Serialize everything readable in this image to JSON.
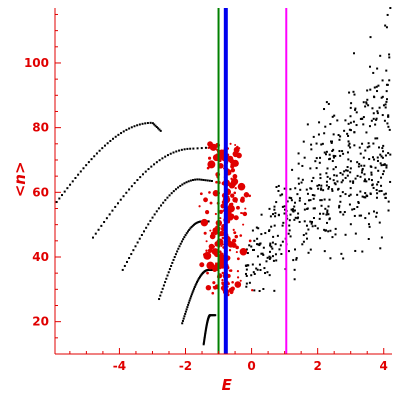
{
  "chart_data": {
    "type": "scatter",
    "title": "",
    "xlabel": "E",
    "ylabel": "<n>",
    "xlim": [
      -5.95,
      4.25
    ],
    "ylim": [
      10,
      117
    ],
    "xticks": [
      -4,
      -2,
      0,
      2,
      4
    ],
    "yticks": [
      20,
      40,
      60,
      80,
      100
    ],
    "grid": false,
    "colors": {
      "axis": "#e00000",
      "black_points": "#000000",
      "red_points": "#e00000",
      "green_line": "#008000",
      "blue_line": "#0000ee",
      "magenta_line": "#ff00ff"
    },
    "vertical_lines": [
      {
        "x": -1.0,
        "color": "#008000",
        "width": "thin"
      },
      {
        "x": -0.78,
        "color": "#0000ee",
        "width": "thick"
      },
      {
        "x": 1.05,
        "color": "#ff00ff",
        "width": "thin"
      }
    ],
    "curves": [
      {
        "x_start": -5.9,
        "y_start": 57,
        "x_peak": -3.0,
        "y_peak": 81.5,
        "x_end": -2.75,
        "y_end": 79
      },
      {
        "x_start": -4.8,
        "y_start": 46,
        "x_peak": -1.8,
        "y_peak": 73.5,
        "x_end": -1.0,
        "y_end": 74
      },
      {
        "x_start": -3.9,
        "y_start": 36,
        "x_peak": -1.6,
        "y_peak": 64,
        "x_end": -1.2,
        "y_end": 63.5
      },
      {
        "x_start": -2.8,
        "y_start": 27,
        "x_peak": -1.5,
        "y_peak": 51,
        "x_end": -1.3,
        "y_end": 51
      },
      {
        "x_start": -2.1,
        "y_start": 19.5,
        "x_peak": -1.3,
        "y_peak": 36,
        "x_end": -1.1,
        "y_end": 36
      },
      {
        "x_start": -1.45,
        "y_start": 13,
        "x_peak": -1.25,
        "y_peak": 22,
        "x_end": -1.1,
        "y_end": 22
      }
    ],
    "black_cloud": {
      "x_range": [
        -0.2,
        4.2
      ],
      "y_center_start": 38,
      "y_center_end": 80,
      "spread_start": 10,
      "spread_end": 35,
      "count": 520,
      "x_max_outliers": [
        [
          4.2,
          117
        ],
        [
          3.1,
          103
        ],
        [
          3.6,
          108
        ]
      ]
    },
    "red_cluster": {
      "x_center": -0.8,
      "x_spread": 0.55,
      "y_range": [
        28,
        75
      ],
      "count": 230,
      "size_range": [
        1,
        4
      ]
    }
  }
}
